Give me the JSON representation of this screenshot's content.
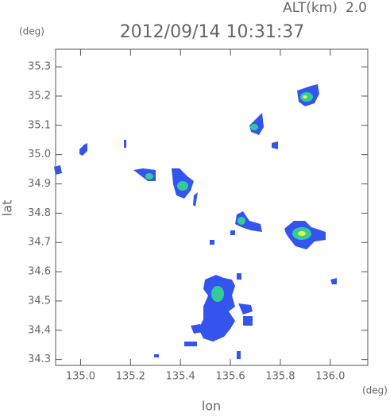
{
  "chart_data": {
    "type": "map",
    "title": "2012/09/14 10:31:37",
    "altitude_label": "ALT(km)",
    "altitude": "2.0",
    "y_unit": "(deg)",
    "x_unit": "(deg)",
    "xlabel": "lon",
    "ylabel": "lat",
    "xlim": [
      134.9,
      136.15
    ],
    "ylim": [
      34.28,
      35.36
    ],
    "xticks": [
      {
        "value": 135,
        "label": "135.0"
      },
      135.2,
      135.4,
      135.6,
      135.8,
      {
        "value": 136,
        "label": "136.0"
      }
    ],
    "yticks": [
      34.3,
      34.4,
      34.5,
      34.6,
      34.7,
      34.8,
      34.9,
      {
        "value": 35,
        "label": "35.0"
      },
      35.1,
      35.2,
      35.3
    ]
  }
}
